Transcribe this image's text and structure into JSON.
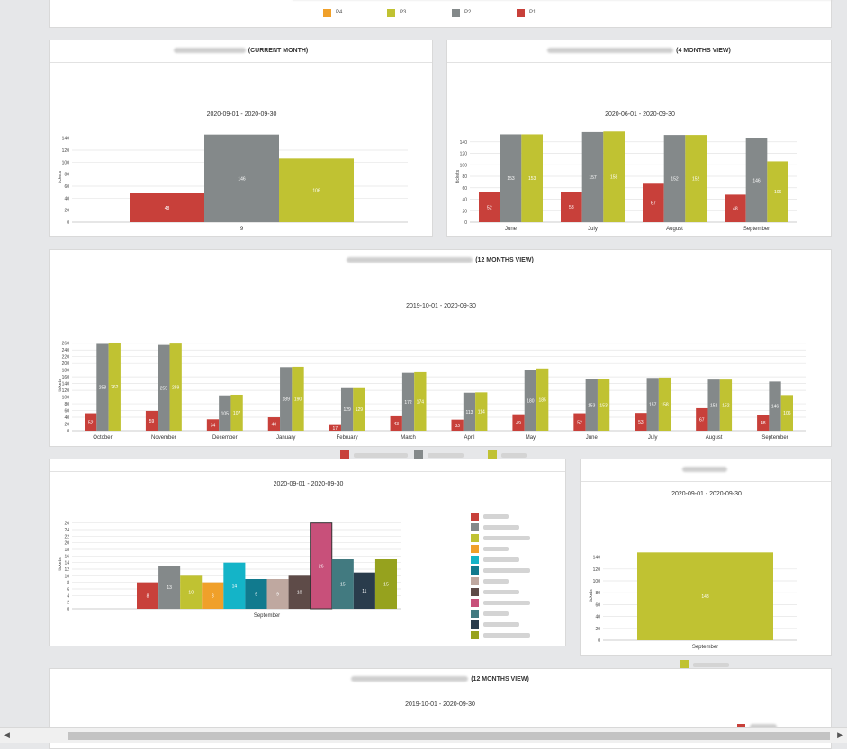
{
  "top_legend": [
    {
      "label": "P4",
      "color": "#f0a02a"
    },
    {
      "label": "P3",
      "color": "#c0c232"
    },
    {
      "label": "P2",
      "color": "#84898a"
    },
    {
      "label": "P1",
      "color": "#c8403a"
    }
  ],
  "panels": {
    "current_month": {
      "title_suffix": "(CURRENT MONTH)"
    },
    "four_months": {
      "title_suffix": "(4 MONTHS VIEW)"
    },
    "twelve_months": {
      "title_suffix": "(12 MONTHS VIEW)"
    },
    "twelve_months_2": {
      "title_suffix": "(12 MONTHS VIEW)",
      "subtitle": "2019-10-01 - 2020-09-30"
    }
  },
  "colors": {
    "red": "#c8403a",
    "gray": "#84898a",
    "olive": "#c0c232"
  },
  "chart_data": [
    {
      "id": "c1",
      "type": "bar",
      "subtitle": "2020-09-01 - 2020-09-30",
      "ylabel": "tickets",
      "ylim": [
        0,
        150
      ],
      "yticks": [
        0,
        20,
        40,
        60,
        80,
        100,
        120,
        140
      ],
      "categories": [
        "9"
      ],
      "series": [
        {
          "name": "",
          "color": "#c8403a",
          "values": [
            48
          ]
        },
        {
          "name": "",
          "color": "#84898a",
          "values": [
            146
          ]
        },
        {
          "name": "",
          "color": "#c0c232",
          "values": [
            106
          ]
        }
      ]
    },
    {
      "id": "c2",
      "type": "bar",
      "subtitle": "2020-06-01 - 2020-09-30",
      "ylabel": "tickets",
      "ylim": [
        0,
        160
      ],
      "yticks": [
        0,
        20,
        40,
        60,
        80,
        100,
        120,
        140
      ],
      "categories": [
        "June",
        "July",
        "August",
        "September"
      ],
      "series": [
        {
          "name": "",
          "color": "#c8403a",
          "values": [
            52,
            53,
            67,
            48
          ]
        },
        {
          "name": "",
          "color": "#84898a",
          "values": [
            153,
            157,
            152,
            146
          ]
        },
        {
          "name": "",
          "color": "#c0c232",
          "values": [
            153,
            158,
            152,
            106
          ]
        }
      ]
    },
    {
      "id": "c3",
      "type": "bar",
      "subtitle": "2019-10-01 - 2020-09-30",
      "ylabel": "tickets",
      "ylim": [
        0,
        270
      ],
      "yticks": [
        0,
        20,
        40,
        60,
        80,
        100,
        120,
        140,
        160,
        180,
        200,
        220,
        240,
        260
      ],
      "categories": [
        "October",
        "November",
        "December",
        "January",
        "February",
        "March",
        "April",
        "May",
        "June",
        "July",
        "August",
        "September"
      ],
      "series": [
        {
          "name": "",
          "color": "#c8403a",
          "values": [
            52,
            59,
            34,
            40,
            17,
            43,
            33,
            49,
            52,
            53,
            67,
            48
          ]
        },
        {
          "name": "",
          "color": "#84898a",
          "values": [
            258,
            255,
            105,
            189,
            129,
            172,
            113,
            180,
            153,
            157,
            152,
            146
          ]
        },
        {
          "name": "",
          "color": "#c0c232",
          "values": [
            262,
            259,
            107,
            190,
            129,
            174,
            114,
            185,
            153,
            158,
            152,
            106
          ]
        }
      ]
    },
    {
      "id": "c4",
      "type": "bar",
      "subtitle": "2020-09-01 - 2020-09-30",
      "ylabel": "tickets",
      "ylim": [
        0,
        27
      ],
      "yticks": [
        0,
        2,
        4,
        6,
        8,
        10,
        12,
        14,
        16,
        18,
        20,
        22,
        24,
        26
      ],
      "categories": [
        "September"
      ],
      "series": [
        {
          "name": "",
          "color": "#c8403a",
          "values": [
            8
          ]
        },
        {
          "name": "",
          "color": "#84898a",
          "values": [
            13
          ]
        },
        {
          "name": "",
          "color": "#c0c232",
          "values": [
            10
          ]
        },
        {
          "name": "",
          "color": "#f0a02a",
          "values": [
            8
          ]
        },
        {
          "name": "",
          "color": "#14b4c8",
          "values": [
            14
          ]
        },
        {
          "name": "",
          "color": "#117a8e",
          "values": [
            9
          ]
        },
        {
          "name": "",
          "color": "#bfa8a0",
          "values": [
            9
          ]
        },
        {
          "name": "",
          "color": "#5e4b48",
          "values": [
            10
          ]
        },
        {
          "name": "",
          "color": "#c8507a",
          "values": [
            26
          ]
        },
        {
          "name": "",
          "color": "#427a80",
          "values": [
            15
          ]
        },
        {
          "name": "",
          "color": "#2a3c4c",
          "values": [
            11
          ]
        },
        {
          "name": "",
          "color": "#96a21e",
          "values": [
            15
          ]
        }
      ]
    },
    {
      "id": "c5",
      "type": "bar",
      "subtitle": "2020-09-01 - 2020-09-30",
      "ylabel": "tickets",
      "ylim": [
        0,
        150
      ],
      "yticks": [
        0,
        20,
        40,
        60,
        80,
        100,
        120,
        140
      ],
      "categories": [
        "September"
      ],
      "series": [
        {
          "name": "",
          "color": "#c0c232",
          "values": [
            148
          ]
        }
      ]
    }
  ]
}
